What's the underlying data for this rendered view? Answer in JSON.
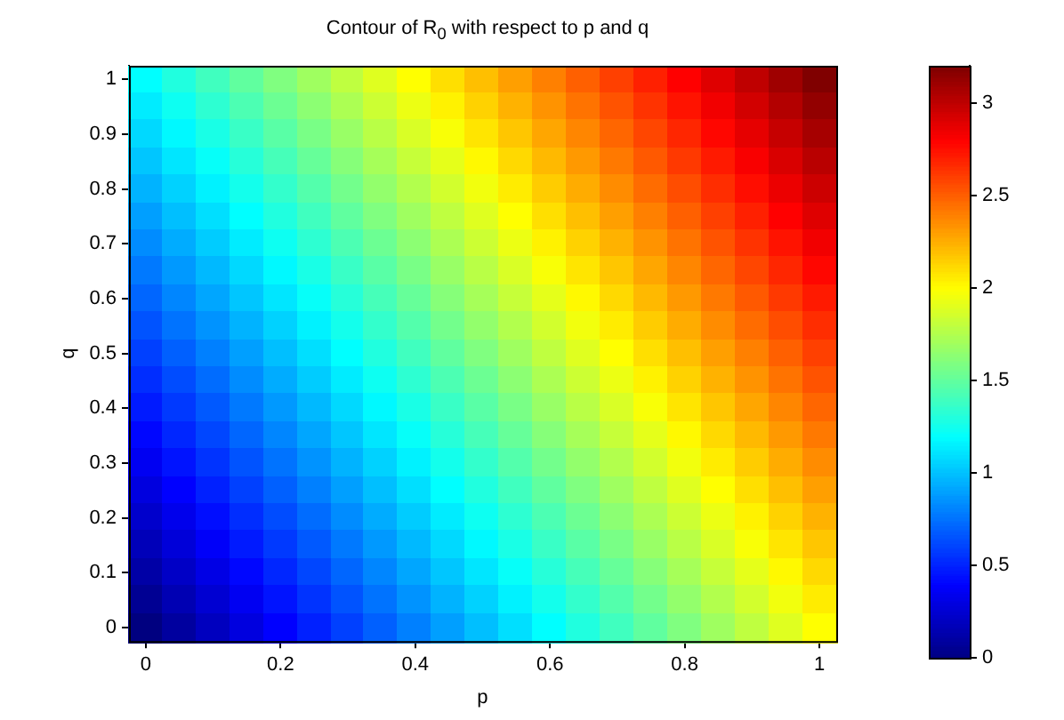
{
  "chart_data": {
    "type": "heatmap",
    "title": "Contour of R$_{0}$ with respect to p and q",
    "xlabel": "p",
    "ylabel": "q",
    "categories": [
      "0",
      null,
      null,
      null,
      "0.2",
      null,
      null,
      null,
      "0.4",
      null,
      null,
      null,
      "0.6",
      null,
      null,
      null,
      "0.8",
      null,
      null,
      null,
      "1"
    ],
    "y_categories": [
      "1",
      null,
      "0.9",
      null,
      "0.8",
      null,
      "0.7",
      null,
      "0.6",
      null,
      "0.5",
      null,
      "0.4",
      null,
      "0.3",
      null,
      "0.2",
      null,
      "0.1",
      null,
      "0"
    ],
    "clim": [
      0,
      3.2
    ],
    "cticks": [
      0,
      0.5,
      1,
      1.5,
      2,
      2.5,
      3
    ],
    "cells": [
      [
        1.2,
        1.3,
        1.4,
        1.5,
        1.6,
        1.7,
        1.8,
        1.9,
        2.0,
        2.1,
        2.2,
        2.3,
        2.4,
        2.5,
        2.6,
        2.7,
        2.8,
        2.9,
        3.0,
        3.1,
        3.2
      ],
      [
        1.14,
        1.24,
        1.34,
        1.44,
        1.54,
        1.64,
        1.74,
        1.84,
        1.94,
        2.04,
        2.14,
        2.24,
        2.34,
        2.44,
        2.54,
        2.64,
        2.74,
        2.84,
        2.94,
        3.04,
        3.14
      ],
      [
        1.08,
        1.18,
        1.28,
        1.38,
        1.48,
        1.58,
        1.68,
        1.78,
        1.88,
        1.98,
        2.08,
        2.18,
        2.28,
        2.38,
        2.48,
        2.58,
        2.68,
        2.78,
        2.88,
        2.98,
        3.08
      ],
      [
        1.02,
        1.12,
        1.22,
        1.32,
        1.42,
        1.52,
        1.62,
        1.72,
        1.82,
        1.92,
        2.02,
        2.12,
        2.22,
        2.32,
        2.42,
        2.52,
        2.62,
        2.72,
        2.82,
        2.92,
        3.02
      ],
      [
        0.96,
        1.06,
        1.16,
        1.26,
        1.36,
        1.46,
        1.56,
        1.66,
        1.76,
        1.86,
        1.96,
        2.06,
        2.16,
        2.26,
        2.36,
        2.46,
        2.56,
        2.66,
        2.76,
        2.86,
        2.96
      ],
      [
        0.9,
        1.0,
        1.1,
        1.2,
        1.3,
        1.4,
        1.5,
        1.6,
        1.7,
        1.8,
        1.9,
        2.0,
        2.1,
        2.2,
        2.3,
        2.4,
        2.5,
        2.6,
        2.7,
        2.8,
        2.9
      ],
      [
        0.84,
        0.94,
        1.04,
        1.14,
        1.24,
        1.34,
        1.44,
        1.54,
        1.64,
        1.74,
        1.84,
        1.94,
        2.04,
        2.14,
        2.24,
        2.34,
        2.44,
        2.54,
        2.64,
        2.74,
        2.84
      ],
      [
        0.78,
        0.88,
        0.98,
        1.08,
        1.18,
        1.28,
        1.38,
        1.48,
        1.58,
        1.68,
        1.78,
        1.88,
        1.98,
        2.08,
        2.18,
        2.28,
        2.38,
        2.48,
        2.58,
        2.68,
        2.78
      ],
      [
        0.72,
        0.82,
        0.92,
        1.02,
        1.12,
        1.22,
        1.32,
        1.42,
        1.52,
        1.62,
        1.72,
        1.82,
        1.92,
        2.02,
        2.12,
        2.22,
        2.32,
        2.42,
        2.52,
        2.62,
        2.72
      ],
      [
        0.66,
        0.76,
        0.86,
        0.96,
        1.06,
        1.16,
        1.26,
        1.36,
        1.46,
        1.56,
        1.66,
        1.76,
        1.86,
        1.96,
        2.06,
        2.16,
        2.26,
        2.36,
        2.46,
        2.56,
        2.66
      ],
      [
        0.6,
        0.7,
        0.8,
        0.9,
        1.0,
        1.1,
        1.2,
        1.3,
        1.4,
        1.5,
        1.6,
        1.7,
        1.8,
        1.9,
        2.0,
        2.1,
        2.2,
        2.3,
        2.4,
        2.5,
        2.6
      ],
      [
        0.54,
        0.64,
        0.74,
        0.84,
        0.94,
        1.04,
        1.14,
        1.24,
        1.34,
        1.44,
        1.54,
        1.64,
        1.74,
        1.84,
        1.94,
        2.04,
        2.14,
        2.24,
        2.34,
        2.44,
        2.54
      ],
      [
        0.48,
        0.58,
        0.68,
        0.78,
        0.88,
        0.98,
        1.08,
        1.18,
        1.28,
        1.38,
        1.48,
        1.58,
        1.68,
        1.78,
        1.88,
        1.98,
        2.08,
        2.18,
        2.28,
        2.38,
        2.48
      ],
      [
        0.42,
        0.52,
        0.62,
        0.72,
        0.82,
        0.92,
        1.02,
        1.12,
        1.22,
        1.32,
        1.42,
        1.52,
        1.62,
        1.72,
        1.82,
        1.92,
        2.02,
        2.12,
        2.22,
        2.32,
        2.42
      ],
      [
        0.36,
        0.46,
        0.56,
        0.66,
        0.76,
        0.86,
        0.96,
        1.06,
        1.16,
        1.26,
        1.36,
        1.46,
        1.56,
        1.66,
        1.76,
        1.86,
        1.96,
        2.06,
        2.16,
        2.26,
        2.36
      ],
      [
        0.3,
        0.4,
        0.5,
        0.6,
        0.7,
        0.8,
        0.9,
        1.0,
        1.1,
        1.2,
        1.3,
        1.4,
        1.5,
        1.6,
        1.7,
        1.8,
        1.9,
        2.0,
        2.1,
        2.2,
        2.3
      ],
      [
        0.24,
        0.34,
        0.44,
        0.54,
        0.64,
        0.74,
        0.84,
        0.94,
        1.04,
        1.14,
        1.24,
        1.34,
        1.44,
        1.54,
        1.64,
        1.74,
        1.84,
        1.94,
        2.04,
        2.14,
        2.24
      ],
      [
        0.18,
        0.28,
        0.38,
        0.48,
        0.58,
        0.68,
        0.78,
        0.88,
        0.98,
        1.08,
        1.18,
        1.28,
        1.38,
        1.48,
        1.58,
        1.68,
        1.78,
        1.88,
        1.98,
        2.08,
        2.18
      ],
      [
        0.12,
        0.22,
        0.32,
        0.42,
        0.52,
        0.62,
        0.72,
        0.82,
        0.92,
        1.02,
        1.12,
        1.22,
        1.32,
        1.42,
        1.52,
        1.62,
        1.72,
        1.82,
        1.92,
        2.02,
        2.12
      ],
      [
        0.06,
        0.16,
        0.26,
        0.36,
        0.46,
        0.56,
        0.66,
        0.76,
        0.86,
        0.96,
        1.06,
        1.16,
        1.26,
        1.36,
        1.46,
        1.56,
        1.66,
        1.76,
        1.86,
        1.96,
        2.06
      ],
      [
        0.0,
        0.1,
        0.2,
        0.3,
        0.4,
        0.5,
        0.6,
        0.7,
        0.8,
        0.9,
        1.0,
        1.1,
        1.2,
        1.3,
        1.4,
        1.5,
        1.6,
        1.7,
        1.8,
        1.9,
        2.0
      ]
    ]
  }
}
